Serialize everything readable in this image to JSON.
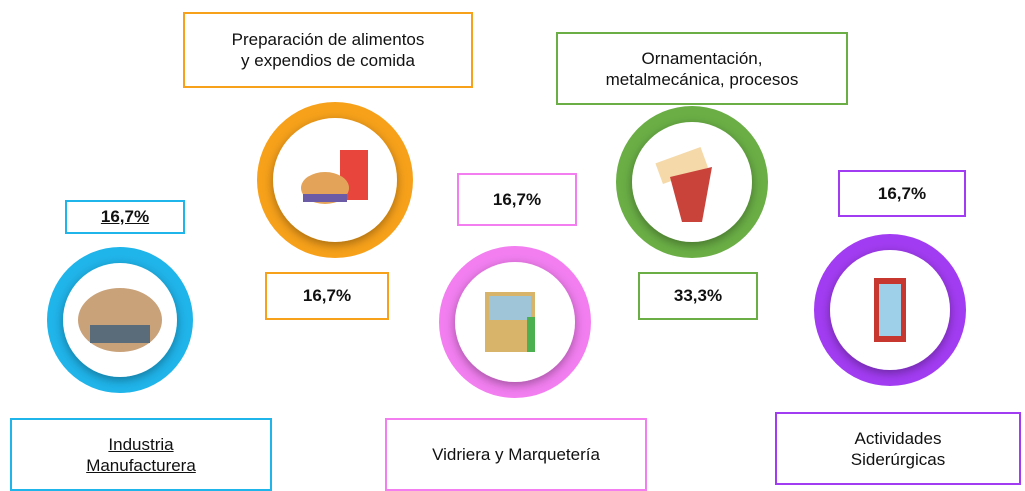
{
  "items": [
    {
      "label_lines": [
        "Industria",
        "Manufacturera"
      ],
      "percent": "16,7%",
      "color": "#1fb4ea"
    },
    {
      "label_lines": [
        "Preparación de alimentos",
        "y expendios de comida"
      ],
      "percent": "16,7%",
      "color": "#f7a11a"
    },
    {
      "label_lines": [
        "Vidriera y Marquetería"
      ],
      "percent": "16,7%",
      "color": "#f27ef0"
    },
    {
      "label_lines": [
        "Ornamentación,",
        "metalmecánica, procesos"
      ],
      "percent": "33,3%",
      "color": "#6aae45"
    },
    {
      "label_lines": [
        "Actividades",
        "Siderúrgicas"
      ],
      "percent": "16,7%",
      "color": "#a23cf2"
    }
  ]
}
